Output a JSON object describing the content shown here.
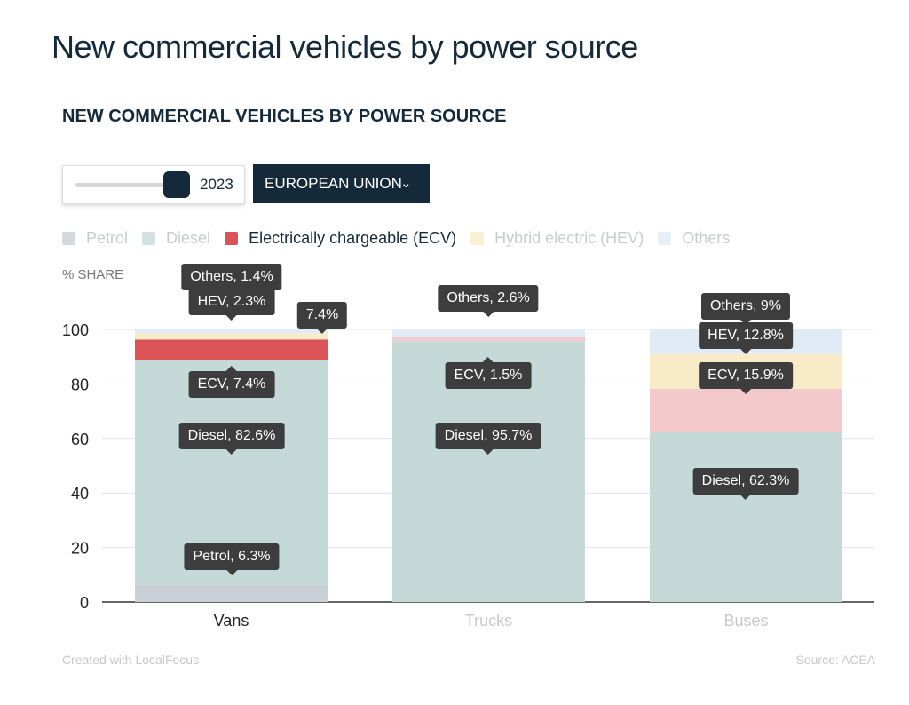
{
  "page_title": "New commercial vehicles by power source",
  "controls": {
    "year": "2023",
    "region": "EUROPEAN UNION",
    "region_icon": "chevron-down-icon",
    "slider_position": 1.0
  },
  "footer": {
    "credit": "Created with LocalFocus",
    "source": "Source:  ACEA"
  },
  "chart_data": {
    "type": "bar",
    "stacked": true,
    "title": "NEW COMMERCIAL VEHICLES BY POWER SOURCE",
    "ylabel": "% SHARE",
    "ylim": [
      0,
      100
    ],
    "yticks": [
      0,
      20,
      40,
      60,
      80,
      100
    ],
    "grid": true,
    "legend_placement": "top-left",
    "categories": [
      "Vans",
      "Trucks",
      "Buses"
    ],
    "highlighted_category": "Vans",
    "highlighted_series": "Electrically chargeable (ECV)",
    "series": [
      {
        "name": "Petrol",
        "color": "#c9cfd6",
        "values": [
          6.3,
          0,
          0
        ]
      },
      {
        "name": "Diesel",
        "color": "#c5d9d9",
        "values": [
          82.6,
          95.7,
          62.3
        ]
      },
      {
        "name": "Electrically chargeable (ECV)",
        "color": "#dc5357",
        "faded_color": "#f3c9cb",
        "values": [
          7.4,
          1.5,
          15.9
        ]
      },
      {
        "name": "Hybrid electric (HEV)",
        "color": "#f8ebc8",
        "values": [
          2.3,
          0,
          12.8
        ]
      },
      {
        "name": "Others",
        "color": "#e1ebf5",
        "values": [
          1.4,
          2.6,
          9
        ]
      }
    ],
    "data_labels": [
      [
        "Petrol, 6.3%",
        "Diesel, 82.6%",
        "ECV, 7.4%",
        "HEV, 2.3%",
        "Others, 1.4%",
        "7.4%"
      ],
      [
        "Diesel, 95.7%",
        "ECV, 1.5%",
        "Others, 2.6%"
      ],
      [
        "Diesel, 62.3%",
        "ECV, 15.9%",
        "HEV, 12.8%",
        "Others, 9%"
      ]
    ]
  }
}
